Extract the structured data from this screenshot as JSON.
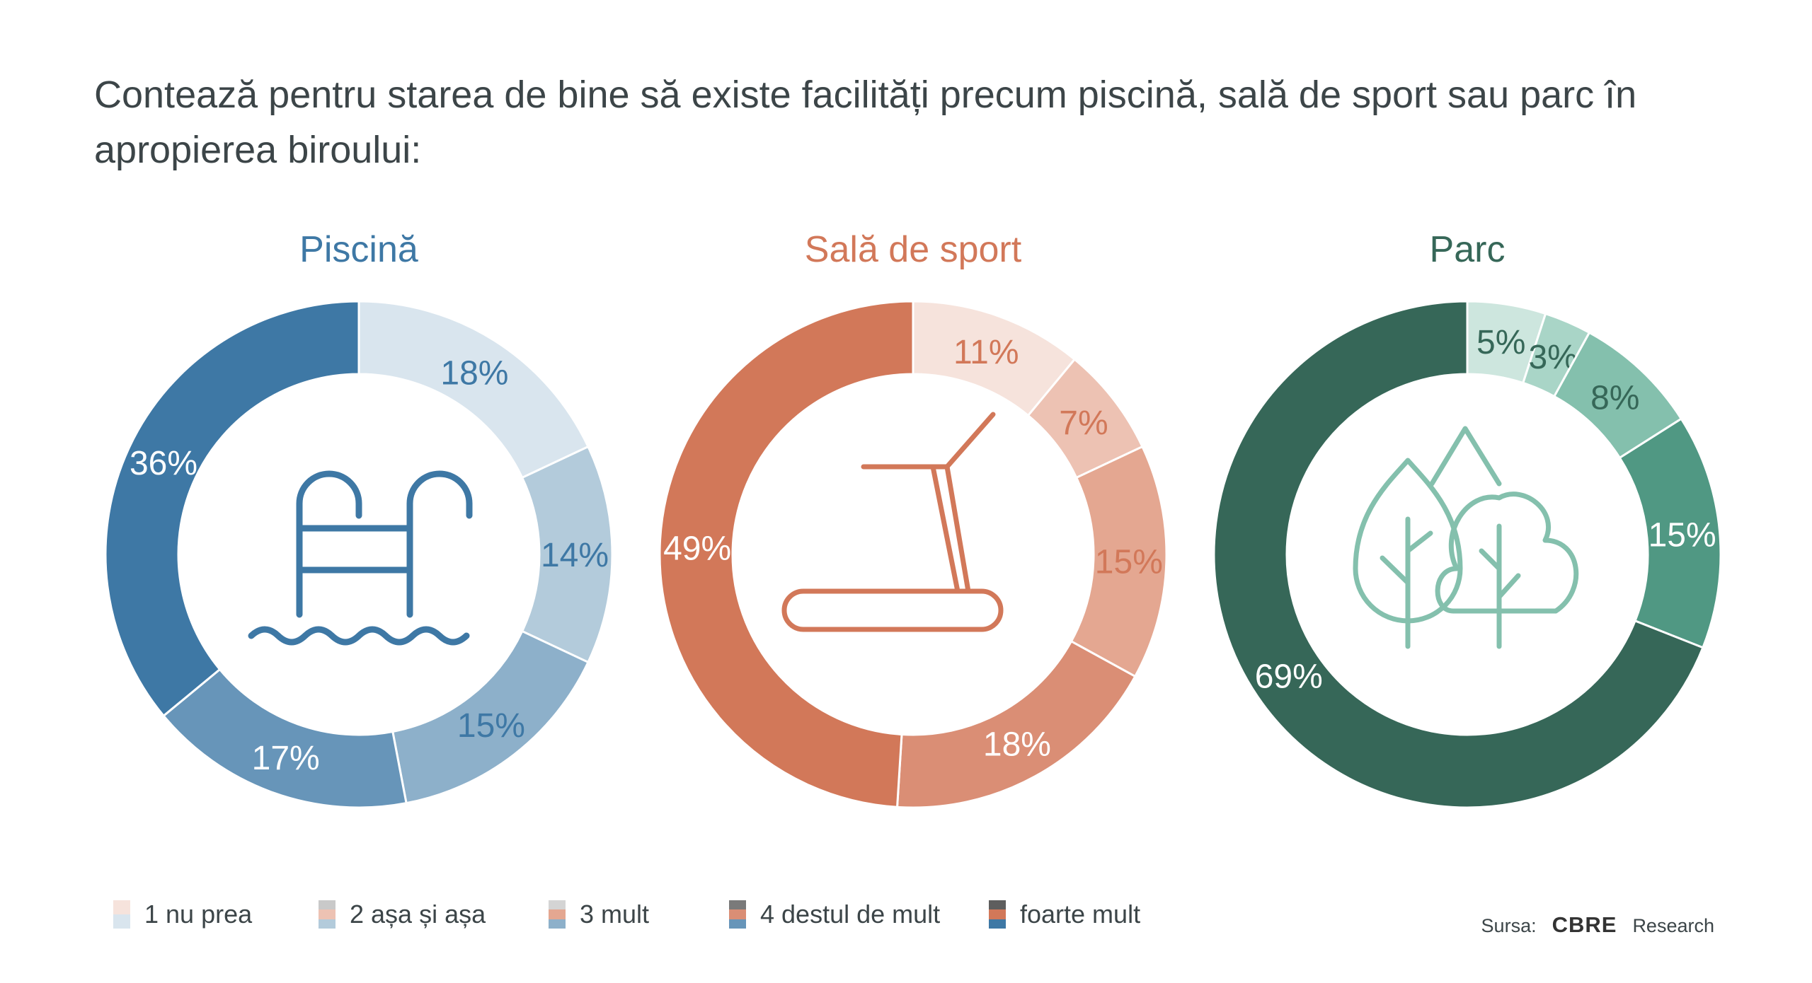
{
  "title": "Contează pentru starea de bine să existe facilități precum piscină, sală de sport sau parc în apropierea biroului:",
  "chart_data": [
    {
      "type": "pie",
      "title": "Piscină",
      "title_color": "#3e78a5",
      "icon": "swimming-pool-ladder-icon",
      "categories": [
        "1 nu prea",
        "2 așa și așa",
        "3 mult",
        "4 destul de mult",
        "foarte mult"
      ],
      "values": [
        18,
        14,
        15,
        17,
        36
      ],
      "labels": [
        "18%",
        "14%",
        "15%",
        "17%",
        "36%"
      ],
      "colors": [
        "#d9e5ee",
        "#b3cbdb",
        "#8db0ca",
        "#6795b9",
        "#3e78a5"
      ],
      "label_colors": [
        "#3e78a5",
        "#3e78a5",
        "#3e78a5",
        "#ffffff",
        "#ffffff"
      ]
    },
    {
      "type": "pie",
      "title": "Sală de sport",
      "title_color": "#d27859",
      "icon": "treadmill-icon",
      "categories": [
        "1 nu prea",
        "2 așa și așa",
        "3 mult",
        "4 destul de mult",
        "foarte mult"
      ],
      "values": [
        11,
        7,
        15,
        18,
        49
      ],
      "labels": [
        "11%",
        "7%",
        "15%",
        "18%",
        "49%"
      ],
      "colors": [
        "#f6e3dc",
        "#edc2b3",
        "#e4a791",
        "#da8e75",
        "#d27859"
      ],
      "label_colors": [
        "#d27859",
        "#d27859",
        "#d27859",
        "#ffffff",
        "#ffffff"
      ]
    },
    {
      "type": "pie",
      "title": "Parc",
      "title_color": "#366758",
      "icon": "trees-icon",
      "categories": [
        "1 nu prea",
        "2 așa și așa",
        "3 mult",
        "4 destul de mult",
        "foarte mult"
      ],
      "values": [
        5,
        3,
        8,
        15,
        69
      ],
      "labels": [
        "5%",
        "3%",
        "8%",
        "15%",
        "69%"
      ],
      "colors": [
        "#cde6de",
        "#a9d5c7",
        "#84c0ad",
        "#509883",
        "#366758"
      ],
      "label_colors": [
        "#366758",
        "#366758",
        "#366758",
        "#ffffff",
        "#ffffff"
      ]
    }
  ],
  "legend": [
    {
      "label": "1 nu prea",
      "colors": [
        "#f6e3dc",
        "#d9e5ee"
      ]
    },
    {
      "label": "2 așa și așa",
      "colors": [
        "#c9c9c9",
        "#edc2b3",
        "#b3cbdb"
      ]
    },
    {
      "label": "3 mult",
      "colors": [
        "#d4d4d4",
        "#e4a791",
        "#8db0ca"
      ]
    },
    {
      "label": "4 destul de mult",
      "colors": [
        "#7a7a7a",
        "#da8e75",
        "#6795b9"
      ]
    },
    {
      "label": "foarte mult",
      "colors": [
        "#5e5e5e",
        "#d27859",
        "#3e78a5"
      ]
    }
  ],
  "source": {
    "prefix": "Sursa:",
    "brand": "CBRE",
    "suffix": "Research"
  }
}
